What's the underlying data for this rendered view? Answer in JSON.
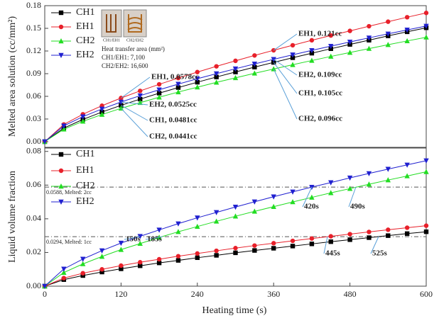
{
  "chart_data": [
    {
      "type": "line",
      "ylabel": "Melted area solution (cc/mm²)",
      "x": [
        0,
        30,
        60,
        90,
        120,
        150,
        180,
        210,
        240,
        270,
        300,
        330,
        360,
        390,
        420,
        450,
        480,
        510,
        540,
        570,
        600
      ],
      "xlim": [
        0,
        600
      ],
      "ylim": [
        -0.0075,
        0.18
      ],
      "yticks": [
        {
          "value": 0,
          "label": "0.00"
        },
        {
          "value": 0.03,
          "label": "0.03"
        },
        {
          "value": 0.06,
          "label": "0.06"
        },
        {
          "value": 0.09,
          "label": "0.09"
        },
        {
          "value": 0.12,
          "label": "0.12"
        },
        {
          "value": 0.15,
          "label": "0.15"
        },
        {
          "value": 0.18,
          "label": "0.18"
        }
      ],
      "legend": "upper left",
      "series": [
        {
          "name": "CH1",
          "color": "#000000",
          "marker": "square",
          "values": [
            0,
            0.018,
            0.0294,
            0.0392,
            0.0481,
            0.0563,
            0.0642,
            0.0716,
            0.0787,
            0.0856,
            0.0922,
            0.0987,
            0.1049,
            0.1111,
            0.1171,
            0.123,
            0.1287,
            0.1343,
            0.14,
            0.1454,
            0.1507
          ]
        },
        {
          "name": "EH1",
          "color": "#e8202a",
          "marker": "circle",
          "values": [
            0,
            0.0228,
            0.0363,
            0.0476,
            0.0578,
            0.0672,
            0.0759,
            0.0842,
            0.0921,
            0.0997,
            0.107,
            0.1141,
            0.1209,
            0.1276,
            0.1342,
            0.1405,
            0.1466,
            0.1528,
            0.1588,
            0.1647,
            0.1704
          ]
        },
        {
          "name": "CH2",
          "color": "#22dd22",
          "marker": "triangle-up",
          "values": [
            0,
            0.0165,
            0.0269,
            0.0359,
            0.0441,
            0.0516,
            0.0588,
            0.0657,
            0.0721,
            0.0785,
            0.0845,
            0.0905,
            0.0962,
            0.1018,
            0.1074,
            0.1128,
            0.118,
            0.1232,
            0.1283,
            0.1333,
            0.1382
          ]
        },
        {
          "name": "EH2",
          "color": "#2020d0",
          "marker": "triangle-down",
          "values": [
            0,
            0.0209,
            0.0331,
            0.0433,
            0.0525,
            0.0609,
            0.0687,
            0.0762,
            0.0833,
            0.09,
            0.0965,
            0.1029,
            0.109,
            0.115,
            0.1208,
            0.1264,
            0.132,
            0.1374,
            0.1427,
            0.1479,
            0.153
          ]
        }
      ],
      "annotations": [
        "EH1, 0.0578cc",
        "EH2, 0.0525cc",
        "CH1, 0.0481cc",
        "CH2, 0.0441cc",
        "EH1, 0.121cc",
        "EH2, 0.109cc",
        "CH1, 0.105cc",
        "CH2, 0.096cc"
      ],
      "inset": {
        "image_labels": [
          "CH1/EH1",
          "CH2/EH2"
        ],
        "title": "Heat transfer area (mm²)",
        "lines": [
          "CH1/EH1: 7,100",
          "CH2/EH2: 16,600"
        ]
      }
    },
    {
      "type": "line",
      "ylabel": "Liquid volume fraction",
      "xlabel": "Heating time (s)",
      "x": [
        0,
        30,
        60,
        90,
        120,
        150,
        180,
        210,
        240,
        270,
        300,
        330,
        360,
        390,
        420,
        450,
        480,
        510,
        540,
        570,
        600
      ],
      "xlim": [
        0,
        600
      ],
      "xticks": [
        0,
        120,
        240,
        360,
        480,
        600
      ],
      "ylim": [
        0,
        0.082
      ],
      "yticks": [
        {
          "value": 0,
          "label": "0.00"
        },
        {
          "value": 0.02,
          "label": "0.02"
        },
        {
          "value": 0.04,
          "label": "0.04"
        },
        {
          "value": 0.06,
          "label": "0.06"
        },
        {
          "value": 0.08,
          "label": "0.08"
        }
      ],
      "legend": "upper left",
      "series": [
        {
          "name": "CH1",
          "color": "#000000",
          "marker": "square",
          "values": [
            0,
            0.0039,
            0.0063,
            0.0084,
            0.0103,
            0.0121,
            0.0138,
            0.0153,
            0.0169,
            0.0183,
            0.0198,
            0.0212,
            0.0225,
            0.0238,
            0.0251,
            0.0264,
            0.0276,
            0.0288,
            0.03,
            0.0312,
            0.0323
          ]
        },
        {
          "name": "EH1",
          "color": "#e8202a",
          "marker": "circle",
          "values": [
            0,
            0.0048,
            0.0077,
            0.01,
            0.0122,
            0.0142,
            0.016,
            0.0178,
            0.0194,
            0.021,
            0.0226,
            0.0241,
            0.0255,
            0.0269,
            0.0283,
            0.0296,
            0.0309,
            0.0322,
            0.0335,
            0.0347,
            0.0359
          ]
        },
        {
          "name": "CH2",
          "color": "#22dd22",
          "marker": "triangle-up",
          "values": [
            0,
            0.0081,
            0.0132,
            0.0176,
            0.0217,
            0.0253,
            0.0289,
            0.0323,
            0.0354,
            0.0385,
            0.0415,
            0.0444,
            0.0472,
            0.05,
            0.0527,
            0.0554,
            0.0579,
            0.0605,
            0.063,
            0.0654,
            0.0679
          ]
        },
        {
          "name": "EH2",
          "color": "#2020d0",
          "marker": "triangle-down",
          "values": [
            0,
            0.0102,
            0.0161,
            0.0211,
            0.0256,
            0.0296,
            0.0334,
            0.0371,
            0.0406,
            0.0438,
            0.047,
            0.0501,
            0.0531,
            0.056,
            0.0588,
            0.0615,
            0.0643,
            0.0669,
            0.0695,
            0.072,
            0.0745
          ]
        }
      ],
      "reference_lines": [
        {
          "value": 0.0588,
          "label": "0.0588, Melted: 2cc"
        },
        {
          "value": 0.0294,
          "label": "0.0294, Melted: 1cc"
        }
      ],
      "annotations": [
        "150s",
        "185s",
        "420s",
        "490s",
        "445s",
        "525s"
      ]
    }
  ]
}
